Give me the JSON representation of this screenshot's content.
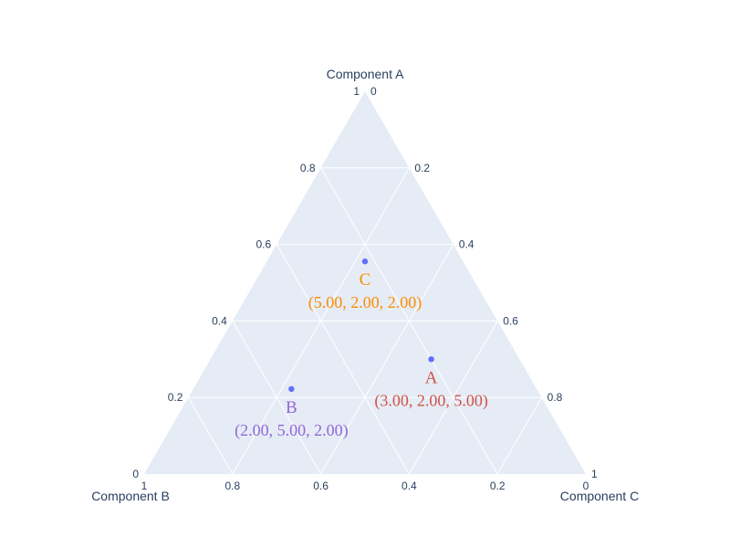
{
  "chart_data": {
    "type": "scatter",
    "subtype": "ternary",
    "axes": {
      "a": {
        "title": "Component A",
        "range": [
          0,
          1
        ],
        "ticks": [
          "0",
          "0.2",
          "0.4",
          "0.6",
          "0.8",
          "1"
        ]
      },
      "b": {
        "title": "Component B",
        "range": [
          0,
          1
        ],
        "ticks": [
          "0",
          "0.2",
          "0.4",
          "0.6",
          "0.8",
          "1"
        ]
      },
      "c": {
        "title": "Component C",
        "range": [
          0,
          1
        ],
        "ticks": [
          "0",
          "0.2",
          "0.4",
          "0.6",
          "0.8",
          "1"
        ]
      }
    },
    "grid": true,
    "background_color": "#e5ecf6",
    "grid_color": "#ffffff",
    "marker_color": "#636efa",
    "points": [
      {
        "label": "A",
        "a": 3,
        "b": 2,
        "c": 5,
        "text": "(3.00, 2.00, 5.00)",
        "color": "#d0524a"
      },
      {
        "label": "B",
        "a": 2,
        "b": 5,
        "c": 2,
        "text": "(2.00, 5.00, 2.00)",
        "color": "#9467d8"
      },
      {
        "label": "C",
        "a": 5,
        "b": 2,
        "c": 2,
        "text": "(5.00, 2.00, 2.00)",
        "color": "#ff8c00"
      }
    ]
  }
}
